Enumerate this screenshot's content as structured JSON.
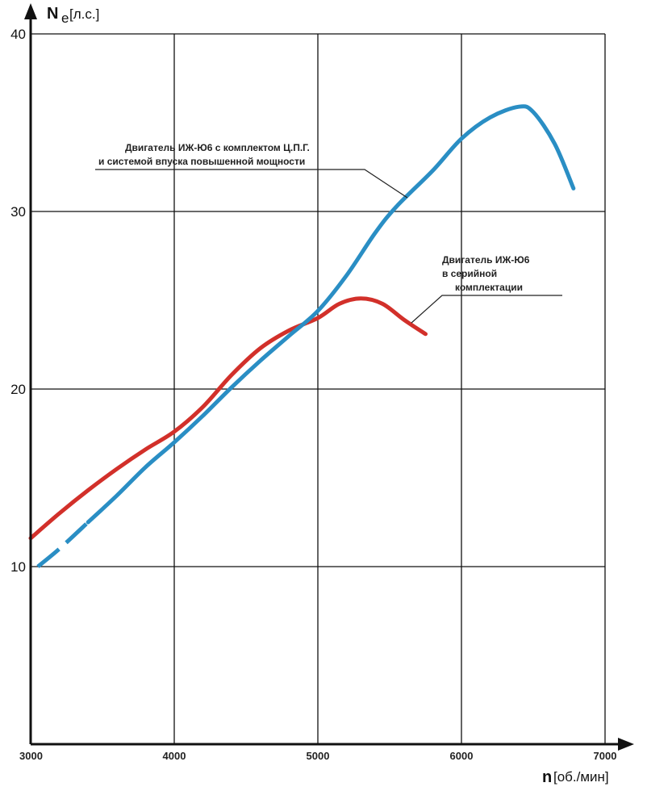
{
  "chart_data": {
    "type": "line",
    "xlabel": "n",
    "xunit": "[об./мин]",
    "ylabel": "N",
    "ylabel_sub": "e",
    "yunit": "[л.с.]",
    "xlim": [
      3000,
      7000
    ],
    "ylim": [
      0,
      40
    ],
    "xticks": [
      "3000",
      "4000",
      "5000",
      "6000",
      "7000"
    ],
    "yticks": [
      "10",
      "20",
      "30",
      "40"
    ],
    "grid": true,
    "series": [
      {
        "color": "#d2302a",
        "points": [
          [
            3000,
            11.6
          ],
          [
            3200,
            13.0
          ],
          [
            3400,
            14.3
          ],
          [
            3600,
            15.5
          ],
          [
            3800,
            16.6
          ],
          [
            4000,
            17.6
          ],
          [
            4200,
            19.0
          ],
          [
            4400,
            20.8
          ],
          [
            4600,
            22.3
          ],
          [
            4800,
            23.3
          ],
          [
            5000,
            24.0
          ],
          [
            5150,
            24.8
          ],
          [
            5300,
            25.1
          ],
          [
            5450,
            24.8
          ],
          [
            5600,
            23.9
          ],
          [
            5750,
            23.1
          ]
        ]
      },
      {
        "color": "#2a8ec4",
        "dashed_until": 3450,
        "points": [
          [
            3050,
            10.0
          ],
          [
            3200,
            11.0
          ],
          [
            3400,
            12.5
          ],
          [
            3600,
            14.0
          ],
          [
            3800,
            15.6
          ],
          [
            4000,
            17.0
          ],
          [
            4200,
            18.5
          ],
          [
            4400,
            20.1
          ],
          [
            4600,
            21.6
          ],
          [
            4800,
            23.0
          ],
          [
            5000,
            24.4
          ],
          [
            5200,
            26.4
          ],
          [
            5400,
            28.8
          ],
          [
            5550,
            30.3
          ],
          [
            5800,
            32.3
          ],
          [
            6000,
            34.1
          ],
          [
            6200,
            35.3
          ],
          [
            6400,
            35.9
          ],
          [
            6500,
            35.6
          ],
          [
            6650,
            33.8
          ],
          [
            6780,
            31.3
          ]
        ]
      }
    ],
    "annotations": [
      {
        "lines": [
          "Двигатель ИЖ-Ю6 с комплектом Ц.П.Г.",
          "и системой впуска повышенной мощности"
        ]
      },
      {
        "lines": [
          "Двигатель ИЖ-Ю6",
          "в серийной",
          "комплектации"
        ]
      }
    ]
  }
}
